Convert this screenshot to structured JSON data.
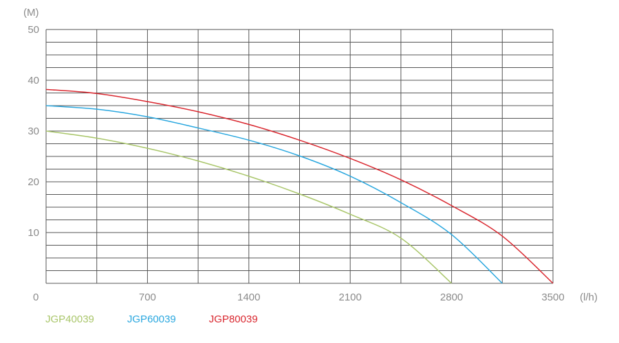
{
  "chart_data": {
    "type": "line",
    "ylabel": "(M)",
    "xlabel": "(l/h)",
    "xlim": [
      0,
      3500
    ],
    "ylim": [
      0,
      50
    ],
    "x_ticks": [
      "0",
      "700",
      "1400",
      "2100",
      "2800",
      "3500"
    ],
    "y_ticks": [
      "10",
      "20",
      "30",
      "40",
      "50"
    ],
    "grid": true,
    "legend_position": "bottom-left",
    "series": [
      {
        "name": "JGP40039",
        "color": "#a9c66a",
        "x": [
          0,
          350,
          700,
          1050,
          1400,
          1750,
          2100,
          2450,
          2800
        ],
        "y": [
          30,
          28.6,
          26.6,
          24.1,
          21.1,
          17.6,
          13.6,
          8.9,
          0
        ]
      },
      {
        "name": "JGP60039",
        "color": "#29a7df",
        "x": [
          0,
          350,
          700,
          1050,
          1400,
          1750,
          2100,
          2450,
          2800,
          3150
        ],
        "y": [
          35,
          34.3,
          32.8,
          30.6,
          28.2,
          25.1,
          21.1,
          15.9,
          9.6,
          0
        ]
      },
      {
        "name": "JGP80039",
        "color": "#d9262e",
        "x": [
          0,
          350,
          700,
          1050,
          1400,
          1750,
          2100,
          2450,
          2800,
          3150,
          3500
        ],
        "y": [
          38.2,
          37.4,
          35.8,
          33.8,
          31.3,
          28.2,
          24.6,
          20.4,
          15.3,
          9.3,
          0
        ]
      }
    ]
  },
  "legend": {
    "items": [
      {
        "label": "JGP40039",
        "color": "#a9c66a"
      },
      {
        "label": "JGP60039",
        "color": "#29a7df"
      },
      {
        "label": "JGP80039",
        "color": "#d9262e"
      }
    ]
  }
}
